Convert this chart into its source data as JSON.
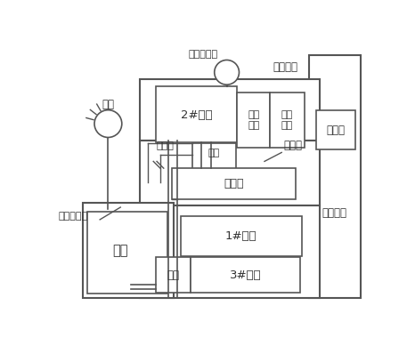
{
  "bg_color": "#ffffff",
  "line_color": "#555555",
  "font_color": "#333333",
  "font_size": 8.5,
  "figsize": [
    4.57,
    3.89
  ],
  "dpi": 100,
  "labels": {
    "zhao_ming": "照明",
    "shou_dong": "手动操作柄",
    "sheng_jiang": "升降机构",
    "motor2": "2#电机",
    "bian_su": "变速\n装置",
    "bu_jin": "步进\n电机",
    "chu_mo": "触摸屏",
    "kong_zhi": "控制面板",
    "leng_que": "冷却水",
    "sha_lun": "砂轮",
    "bao_hu": "保护罩",
    "gong_zuo": "工作台",
    "motor1": "1#电机",
    "shui_xiang": "水箱",
    "shui_beng": "水泵",
    "motor3": "3#电机",
    "ye_wei": "液位指示器"
  }
}
